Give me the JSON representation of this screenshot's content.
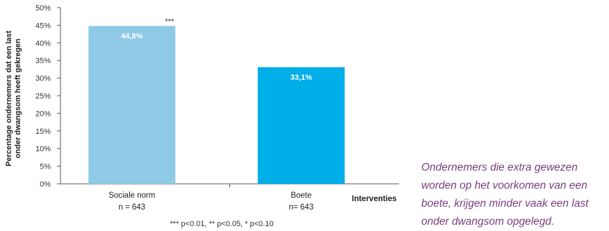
{
  "chart_data": {
    "type": "bar",
    "categories": [
      "Sociale norm",
      "Boete"
    ],
    "category_notes": [
      "n = 643",
      "n= 643"
    ],
    "values": [
      44.8,
      33.1
    ],
    "data_labels": [
      "44,8%",
      "33,1%"
    ],
    "significance_labels": [
      "***",
      ""
    ],
    "bar_colors": [
      "#8ecae6",
      "#00aee8"
    ],
    "ylabel_lines": [
      "Percentage ondernemers dat een last",
      "onder dwangsom heeft gekregen"
    ],
    "xlabel": "Interventies",
    "ylim": [
      0,
      50
    ],
    "yticks": [
      0,
      5,
      10,
      15,
      20,
      25,
      30,
      35,
      40,
      45,
      50
    ],
    "ytick_labels": [
      "0%",
      "5%",
      "10%",
      "15%",
      "20%",
      "25%",
      "30%",
      "35%",
      "40%",
      "45%",
      "50%"
    ],
    "footnote": "*** p<0.01, ** p<0.05, * p<0.10",
    "grid": false
  },
  "caption": "Ondernemers die extra gewezen worden op het voorkomen van een boete, krijgen minder vaak een last onder dwangsom opgelegd.",
  "colors": {
    "caption": "#7a3d7e",
    "axis": "#555555"
  }
}
